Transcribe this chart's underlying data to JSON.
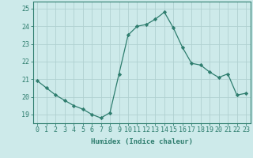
{
  "x": [
    0,
    1,
    2,
    3,
    4,
    5,
    6,
    7,
    8,
    9,
    10,
    11,
    12,
    13,
    14,
    15,
    16,
    17,
    18,
    19,
    20,
    21,
    22,
    23
  ],
  "y": [
    20.9,
    20.5,
    20.1,
    19.8,
    19.5,
    19.3,
    19.0,
    18.8,
    19.1,
    21.3,
    23.5,
    24.0,
    24.1,
    24.4,
    24.8,
    23.9,
    22.8,
    21.9,
    21.8,
    21.4,
    21.1,
    21.3,
    20.1,
    20.2
  ],
  "line_color": "#2e7d6e",
  "marker": "D",
  "marker_size": 2.2,
  "bg_color": "#cdeaea",
  "grid_color": "#b0d0d0",
  "spine_color": "#2e7d6e",
  "xlabel": "Humidex (Indice chaleur)",
  "xlim": [
    -0.5,
    23.5
  ],
  "ylim": [
    18.5,
    25.4
  ],
  "yticks": [
    19,
    20,
    21,
    22,
    23,
    24,
    25
  ],
  "xtick_labels": [
    "0",
    "1",
    "2",
    "3",
    "4",
    "5",
    "6",
    "7",
    "8",
    "9",
    "10",
    "11",
    "12",
    "13",
    "14",
    "15",
    "16",
    "17",
    "18",
    "19",
    "20",
    "21",
    "22",
    "23"
  ],
  "xlabel_fontsize": 6.5,
  "tick_fontsize": 6.0
}
